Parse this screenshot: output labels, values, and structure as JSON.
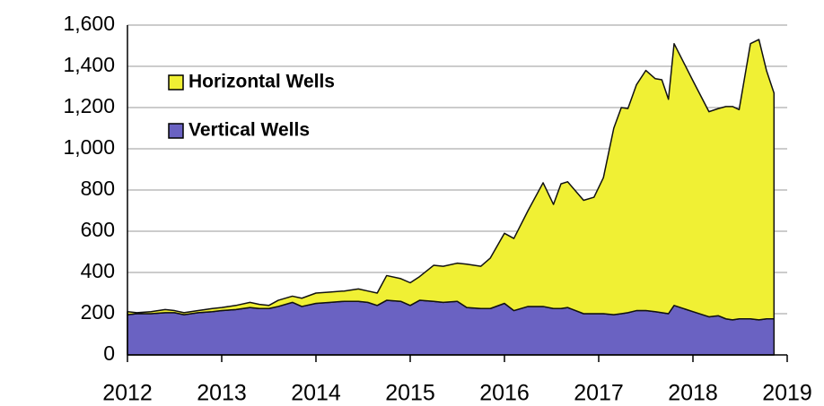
{
  "chart_data": {
    "type": "stacked_area",
    "x": [
      2012.0,
      2012.1,
      2012.25,
      2012.4,
      2012.5,
      2012.6,
      2012.75,
      2012.9,
      2013.0,
      2013.15,
      2013.3,
      2013.4,
      2013.5,
      2013.6,
      2013.75,
      2013.85,
      2014.0,
      2014.15,
      2014.3,
      2014.45,
      2014.55,
      2014.65,
      2014.75,
      2014.9,
      2015.0,
      2015.1,
      2015.25,
      2015.35,
      2015.5,
      2015.6,
      2015.75,
      2015.85,
      2016.0,
      2016.1,
      2016.25,
      2016.41,
      2016.52,
      2016.6,
      2016.67,
      2016.84,
      2016.95,
      2017.05,
      2017.16,
      2017.24,
      2017.31,
      2017.4,
      2017.5,
      2017.6,
      2017.67,
      2017.74,
      2017.8,
      2018.0,
      2018.17,
      2018.27,
      2018.35,
      2018.42,
      2018.49,
      2018.61,
      2018.7,
      2018.78,
      2018.86
    ],
    "series": [
      {
        "name": "Vertical Wells",
        "color": "#6a62c2",
        "values": [
          195,
          200,
          200,
          205,
          205,
          195,
          205,
          210,
          215,
          220,
          230,
          225,
          225,
          235,
          255,
          235,
          250,
          255,
          260,
          260,
          255,
          240,
          265,
          260,
          240,
          265,
          260,
          255,
          260,
          230,
          225,
          225,
          250,
          215,
          235,
          235,
          225,
          225,
          230,
          200,
          200,
          200,
          195,
          200,
          205,
          215,
          215,
          210,
          205,
          200,
          240,
          210,
          185,
          190,
          175,
          170,
          175,
          175,
          170,
          175,
          175
        ]
      },
      {
        "name": "Horizontal Wells",
        "color": "#f0f034",
        "values": [
          15,
          5,
          10,
          15,
          10,
          10,
          10,
          15,
          15,
          20,
          25,
          20,
          15,
          30,
          30,
          40,
          50,
          50,
          50,
          60,
          55,
          60,
          120,
          110,
          110,
          115,
          175,
          175,
          185,
          210,
          205,
          245,
          340,
          350,
          465,
          600,
          505,
          605,
          610,
          550,
          565,
          660,
          905,
          1000,
          990,
          1095,
          1165,
          1130,
          1130,
          1040,
          1270,
          1120,
          995,
          1005,
          1030,
          1035,
          1015,
          1335,
          1360,
          1205,
          1095
        ]
      }
    ],
    "xlim": [
      2012,
      2019
    ],
    "xticks": [
      2012,
      2013,
      2014,
      2015,
      2016,
      2017,
      2018,
      2019
    ],
    "ylim": [
      0,
      1600
    ],
    "yticks": [
      0,
      200,
      400,
      600,
      800,
      {
        "value": 1000,
        "label": "1,000"
      },
      {
        "value": 1200,
        "label": "1,200"
      },
      {
        "value": 1400,
        "label": "1,400"
      },
      {
        "value": 1600,
        "label": "1,600"
      }
    ],
    "grid": true,
    "legend": "upper left"
  }
}
